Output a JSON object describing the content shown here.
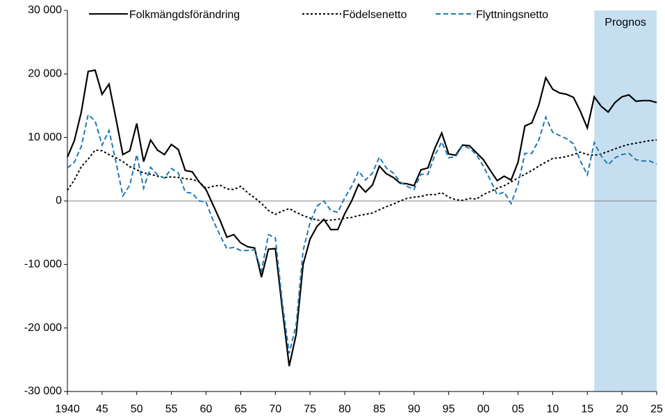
{
  "chart_data": {
    "type": "line",
    "x": [
      1940,
      1941,
      1942,
      1943,
      1944,
      1945,
      1946,
      1947,
      1948,
      1949,
      1950,
      1951,
      1952,
      1953,
      1954,
      1955,
      1956,
      1957,
      1958,
      1959,
      1960,
      1961,
      1962,
      1963,
      1964,
      1965,
      1966,
      1967,
      1968,
      1969,
      1970,
      1971,
      1972,
      1973,
      1974,
      1975,
      1976,
      1977,
      1978,
      1979,
      1980,
      1981,
      1982,
      1983,
      1984,
      1985,
      1986,
      1987,
      1988,
      1989,
      1990,
      1991,
      1992,
      1993,
      1994,
      1995,
      1996,
      1997,
      1998,
      1999,
      2000,
      2001,
      2002,
      2003,
      2004,
      2005,
      2006,
      2007,
      2008,
      2009,
      2010,
      2011,
      2012,
      2013,
      2014,
      2015,
      2016,
      2017,
      2018,
      2019,
      2020,
      2021,
      2022,
      2023,
      2024,
      2025
    ],
    "series": [
      {
        "name": "Folkmängdsförändring",
        "color": "#000000",
        "dash": "solid",
        "values": [
          6900,
          9500,
          14000,
          20400,
          20600,
          16800,
          18400,
          13000,
          7300,
          7900,
          12200,
          6200,
          9600,
          8000,
          7300,
          8900,
          8100,
          4800,
          4600,
          3000,
          1800,
          -600,
          -3000,
          -5700,
          -5300,
          -6600,
          -7200,
          -7400,
          -12000,
          -7600,
          -7500,
          -17000,
          -26000,
          -21000,
          -10000,
          -6000,
          -4000,
          -2900,
          -4500,
          -4500,
          -2000,
          0,
          2600,
          1400,
          2500,
          5500,
          4300,
          3700,
          2800,
          2700,
          2400,
          4900,
          5200,
          8300,
          10700,
          7400,
          7200,
          8800,
          8700,
          7600,
          6500,
          4800,
          3200,
          3900,
          3300,
          6100,
          11800,
          12300,
          15100,
          19400,
          17600,
          17000,
          16800,
          16300,
          14100,
          11500,
          16400,
          14900,
          14000,
          15500,
          16400,
          16700,
          15700,
          15800,
          15800,
          15500
        ]
      },
      {
        "name": "Födelsenetto",
        "color": "#000000",
        "dash": "dotted",
        "values": [
          1700,
          3300,
          5400,
          6600,
          8000,
          7900,
          7300,
          6800,
          6200,
          5400,
          4900,
          4400,
          4200,
          3900,
          3700,
          3800,
          3700,
          3500,
          3400,
          3000,
          2000,
          2300,
          2500,
          1900,
          1800,
          2300,
          1300,
          500,
          -400,
          -1500,
          -2100,
          -1600,
          -1200,
          -1800,
          -2300,
          -2700,
          -3000,
          -3100,
          -3000,
          -2900,
          -2700,
          -2600,
          -2300,
          -2100,
          -1900,
          -1400,
          -900,
          -500,
          0,
          400,
          600,
          700,
          1000,
          1000,
          1300,
          600,
          200,
          100,
          400,
          300,
          1000,
          1500,
          2000,
          2400,
          3000,
          3600,
          4200,
          4800,
          5500,
          6100,
          6700,
          6800,
          7000,
          7300,
          7700,
          7300,
          7200,
          7400,
          7800,
          8200,
          8600,
          8900,
          9100,
          9300,
          9500,
          9600
        ]
      },
      {
        "name": "Flyttningsnetto",
        "color": "#1f78b4",
        "dash": "dashed",
        "values": [
          5200,
          6100,
          8600,
          13600,
          12600,
          8800,
          11100,
          6200,
          800,
          2500,
          7300,
          2000,
          5300,
          4100,
          3600,
          5100,
          4400,
          1400,
          1200,
          0,
          -200,
          -3000,
          -5400,
          -7500,
          -7300,
          -7800,
          -7800,
          -7700,
          -11000,
          -5300,
          -5800,
          -16000,
          -24000,
          -19500,
          -7800,
          -3400,
          -800,
          0,
          -1500,
          -1800,
          500,
          2300,
          4700,
          3300,
          4400,
          6900,
          5200,
          4400,
          3000,
          2300,
          1800,
          4200,
          4200,
          7200,
          9300,
          6800,
          7000,
          8700,
          8300,
          7300,
          5500,
          3300,
          1000,
          1400,
          -400,
          2600,
          7500,
          7500,
          9600,
          13200,
          10800,
          10300,
          9800,
          9000,
          6300,
          4100,
          9200,
          7100,
          5700,
          6800,
          7300,
          7500,
          6500,
          6300,
          6300,
          5800
        ]
      }
    ],
    "shaded_region": {
      "label": "Prognos",
      "x": [
        2016,
        2025
      ],
      "color": "#c6dff0"
    },
    "xlim": [
      1940,
      2025
    ],
    "xticks": [
      1940,
      {
        "value": 1945,
        "label": "45"
      },
      {
        "value": 1950,
        "label": "50"
      },
      {
        "value": 1955,
        "label": "55"
      },
      {
        "value": 1960,
        "label": "60"
      },
      {
        "value": 1965,
        "label": "65"
      },
      {
        "value": 1970,
        "label": "70"
      },
      {
        "value": 1975,
        "label": "75"
      },
      {
        "value": 1980,
        "label": "80"
      },
      {
        "value": 1985,
        "label": "85"
      },
      {
        "value": 1990,
        "label": "90"
      },
      {
        "value": 1995,
        "label": "95"
      },
      {
        "value": 2000,
        "label": "00"
      },
      {
        "value": 2005,
        "label": "05"
      },
      {
        "value": 2010,
        "label": "10"
      },
      {
        "value": 2015,
        "label": "15"
      },
      {
        "value": 2020,
        "label": "20"
      },
      {
        "value": 2025,
        "label": "25"
      }
    ],
    "ylim": [
      -30000,
      30000
    ],
    "yticks": [
      {
        "value": -30000,
        "label": "-30 000"
      },
      {
        "value": -20000,
        "label": "-20 000"
      },
      {
        "value": -10000,
        "label": "-10 000"
      },
      0,
      {
        "value": 10000,
        "label": "10 000"
      },
      {
        "value": 20000,
        "label": "20 000"
      },
      {
        "value": 30000,
        "label": "30 000"
      }
    ],
    "legend": "top"
  }
}
